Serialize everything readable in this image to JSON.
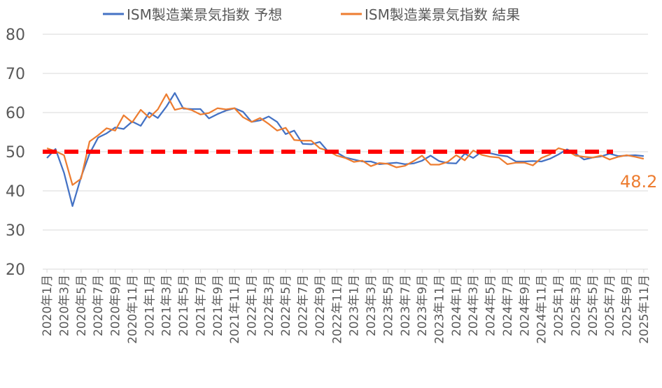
{
  "chart_data": {
    "type": "line",
    "title": "",
    "xlabel": "",
    "ylabel": "",
    "ylim": [
      20,
      80
    ],
    "yticks": [
      "20",
      "30",
      "40",
      "50",
      "60",
      "70",
      "80"
    ],
    "grid": true,
    "legend_position": "top",
    "x": [
      "2020年1月",
      "2020年2月",
      "2020年3月",
      "2020年4月",
      "2020年5月",
      "2020年6月",
      "2020年7月",
      "2020年8月",
      "2020年9月",
      "2020年10月",
      "2020年11月",
      "2020年12月",
      "2021年1月",
      "2021年2月",
      "2021年3月",
      "2021年4月",
      "2021年5月",
      "2021年6月",
      "2021年7月",
      "2021年8月",
      "2021年9月",
      "2021年10月",
      "2021年11月",
      "2021年12月",
      "2022年1月",
      "2022年2月",
      "2022年3月",
      "2022年4月",
      "2022年5月",
      "2022年6月",
      "2022年7月",
      "2022年8月",
      "2022年9月",
      "2022年10月",
      "2022年11月",
      "2022年12月",
      "2023年1月",
      "2023年2月",
      "2023年3月",
      "2023年4月",
      "2023年5月",
      "2023年6月",
      "2023年7月",
      "2023年8月",
      "2023年9月",
      "2023年10月",
      "2023年11月",
      "2023年12月",
      "2024年1月",
      "2024年2月",
      "2024年3月",
      "2024年4月",
      "2024年5月",
      "2024年6月",
      "2024年7月",
      "2024年8月",
      "2024年9月",
      "2024年10月",
      "2024年11月",
      "2024年12月",
      "2025年1月",
      "2025年2月",
      "2025年3月",
      "2025年4月",
      "2025年5月",
      "2025年6月",
      "2025年7月",
      "2025年8月",
      "2025年9月",
      "2025年10月",
      "2025年11月"
    ],
    "x_tick_labels": [
      "2020年1月",
      "2020年3月",
      "2020年5月",
      "2020年7月",
      "2020年9月",
      "2020年11月",
      "2021年1月",
      "2021年3月",
      "2021年5月",
      "2021年7月",
      "2021年9月",
      "2021年11月",
      "2022年1月",
      "2022年3月",
      "2022年5月",
      "2022年7月",
      "2022年9月",
      "2022年11月",
      "2023年1月",
      "2023年3月",
      "2023年5月",
      "2023年7月",
      "2023年9月",
      "2023年11月",
      "2024年1月",
      "2024年3月",
      "2024年5月",
      "2024年7月",
      "2024年9月",
      "2024年11月",
      "2025年1月",
      "2025年3月",
      "2025年5月",
      "2025年7月",
      "2025年9月",
      "2025年11月"
    ],
    "series": [
      {
        "name": "ISM製造業景気指数 予想",
        "color": "#4472C4",
        "values": [
          48.4,
          50.7,
          44.6,
          36.1,
          43.5,
          49.5,
          53.6,
          54.7,
          56.2,
          55.8,
          57.7,
          56.6,
          60.0,
          58.6,
          61.5,
          65.0,
          61.0,
          60.9,
          60.9,
          58.5,
          59.6,
          60.5,
          61.1,
          60.2,
          57.6,
          58.0,
          59.0,
          57.6,
          54.5,
          55.4,
          52.0,
          51.9,
          52.5,
          50.0,
          49.8,
          48.5,
          48.0,
          47.5,
          47.5,
          46.8,
          47.0,
          47.2,
          46.8,
          47.0,
          47.7,
          49.0,
          47.6,
          47.1,
          47.0,
          49.5,
          48.4,
          50.0,
          49.6,
          49.1,
          48.8,
          47.5,
          47.5,
          47.6,
          47.5,
          48.2,
          49.3,
          50.6,
          49.5,
          48.0,
          48.5,
          48.8,
          49.5,
          48.9,
          49.0,
          49.1,
          48.9
        ]
      },
      {
        "name": "ISM製造業景気指数 結果",
        "color": "#ED7D31",
        "values": [
          50.9,
          50.1,
          49.1,
          41.5,
          43.1,
          52.6,
          54.2,
          56.0,
          55.4,
          59.3,
          57.5,
          60.7,
          58.7,
          60.8,
          64.7,
          60.7,
          61.2,
          60.6,
          59.5,
          59.9,
          61.1,
          60.8,
          61.1,
          58.8,
          57.6,
          58.6,
          57.1,
          55.4,
          56.1,
          53.0,
          52.8,
          52.8,
          50.9,
          50.2,
          49.0,
          48.4,
          47.4,
          47.7,
          46.3,
          47.1,
          46.9,
          46.0,
          46.4,
          47.6,
          49.0,
          46.7,
          46.7,
          47.4,
          49.1,
          47.8,
          50.3,
          49.2,
          48.7,
          48.5,
          46.8,
          47.2,
          47.2,
          46.5,
          48.4,
          49.3,
          50.9,
          50.3,
          49.0,
          48.7,
          48.5,
          49.0,
          48.0,
          48.7,
          49.1,
          48.7,
          48.2
        ]
      }
    ],
    "reference_line": {
      "value": 50,
      "color": "#FF0000",
      "style": "dashed"
    },
    "annotations": [
      {
        "text": "48.2",
        "color": "#ED7D31"
      }
    ]
  }
}
